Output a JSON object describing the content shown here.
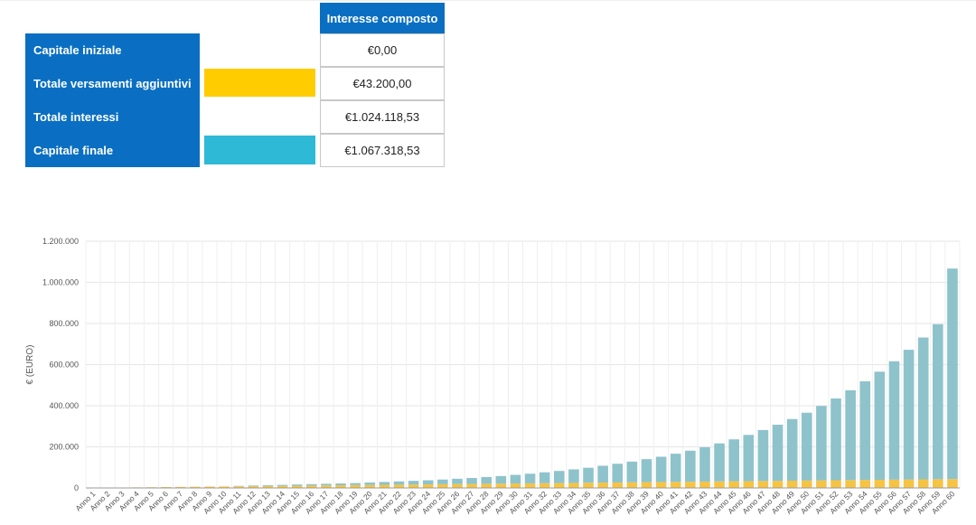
{
  "summary": {
    "column_header": "Interesse composto",
    "rows": [
      {
        "label": "Capitale iniziale",
        "value": "€0,00",
        "swatch_color": ""
      },
      {
        "label": "Totale versamenti aggiuntivi",
        "value": "€43.200,00",
        "swatch_color": "#ffcc00"
      },
      {
        "label": "Totale interessi",
        "value": "€1.024.118,53",
        "swatch_color": ""
      },
      {
        "label": "Capitale finale",
        "value": "€1.067.318,53",
        "swatch_color": "#2eb9d6"
      }
    ]
  },
  "chart_data": {
    "type": "bar",
    "stacked": true,
    "ylabel": "€ (EURO)",
    "xlabel": "",
    "ylim": [
      0,
      1200000
    ],
    "yticks": [
      0,
      200000,
      400000,
      600000,
      800000,
      1000000,
      1200000
    ],
    "ytick_labels": [
      "0",
      "200.000",
      "400.000",
      "600.000",
      "800.000",
      "1.000.000",
      "1.200.000"
    ],
    "grid": true,
    "categories": [
      "Anno 1",
      "Anno 2",
      "Anno 3",
      "Anno 4",
      "Anno 5",
      "Anno 6",
      "Anno 7",
      "Anno 8",
      "Anno 9",
      "Anno 10",
      "Anno 11",
      "Anno 12",
      "Anno 13",
      "Anno 14",
      "Anno 15",
      "Anno 16",
      "Anno 17",
      "Anno 18",
      "Anno 19",
      "Anno 20",
      "Anno 21",
      "Anno 22",
      "Anno 23",
      "Anno 24",
      "Anno 25",
      "Anno 26",
      "Anno 27",
      "Anno 28",
      "Anno 29",
      "Anno 30",
      "Anno 31",
      "Anno 32",
      "Anno 33",
      "Anno 34",
      "Anno 35",
      "Anno 36",
      "Anno 37",
      "Anno 38",
      "Anno 39",
      "Anno 40",
      "Anno 41",
      "Anno 42",
      "Anno 43",
      "Anno 44",
      "Anno 45",
      "Anno 46",
      "Anno 47",
      "Anno 48",
      "Anno 49",
      "Anno 50",
      "Anno 51",
      "Anno 52",
      "Anno 53",
      "Anno 54",
      "Anno 55",
      "Anno 56",
      "Anno 57",
      "Anno 58",
      "Anno 59",
      "Anno 60"
    ],
    "series": [
      {
        "color": "#f6c342",
        "values": [
          720,
          1440,
          2160,
          2880,
          3600,
          4320,
          5040,
          5760,
          6480,
          7200,
          7920,
          8640,
          9360,
          10080,
          10800,
          11520,
          12240,
          12960,
          13680,
          14400,
          15120,
          15840,
          16560,
          17280,
          18000,
          18720,
          19440,
          20160,
          20880,
          21600,
          22320,
          23040,
          23760,
          24480,
          25200,
          25920,
          26640,
          27360,
          28080,
          28800,
          29520,
          30240,
          30960,
          31680,
          32400,
          33120,
          33840,
          34560,
          35280,
          36000,
          36720,
          37440,
          38160,
          38880,
          39600,
          40320,
          41040,
          41760,
          42480,
          43200
        ]
      },
      {
        "color": "#8ec3cc",
        "values": [
          0,
          0,
          0,
          0,
          0,
          0,
          0,
          0,
          0,
          0,
          2000,
          3000,
          4000,
          5000,
          6000,
          7000,
          8000,
          9000,
          10000,
          12000,
          14000,
          16000,
          18000,
          20000,
          23000,
          26000,
          29000,
          33000,
          37000,
          42000,
          47000,
          53000,
          59000,
          66000,
          73000,
          82000,
          91000,
          101000,
          112000,
          123000,
          137000,
          151000,
          167000,
          185000,
          204000,
          225000,
          248000,
          273000,
          300000,
          330000,
          362000,
          398000,
          437000,
          480000,
          526000,
          576000,
          631000,
          690000,
          754000,
          1024100
        ]
      }
    ]
  }
}
